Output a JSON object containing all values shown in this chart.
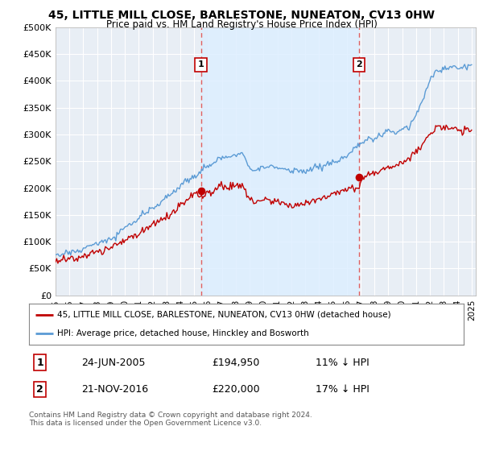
{
  "title": "45, LITTLE MILL CLOSE, BARLESTONE, NUNEATON, CV13 0HW",
  "subtitle": "Price paid vs. HM Land Registry's House Price Index (HPI)",
  "ylabel_ticks": [
    "£0",
    "£50K",
    "£100K",
    "£150K",
    "£200K",
    "£250K",
    "£300K",
    "£350K",
    "£400K",
    "£450K",
    "£500K"
  ],
  "ytick_values": [
    0,
    50000,
    100000,
    150000,
    200000,
    250000,
    300000,
    350000,
    400000,
    450000,
    500000
  ],
  "ylim": [
    0,
    500000
  ],
  "xlim_start": 1995.0,
  "xlim_end": 2025.3,
  "hpi_color": "#5b9bd5",
  "price_color": "#c00000",
  "vline_color": "#e06060",
  "shade_color": "#ddeeff",
  "marker1_x": 2005.48,
  "marker1_y": 194950,
  "marker2_x": 2016.9,
  "marker2_y": 220000,
  "legend_label_red": "45, LITTLE MILL CLOSE, BARLESTONE, NUNEATON, CV13 0HW (detached house)",
  "legend_label_blue": "HPI: Average price, detached house, Hinckley and Bosworth",
  "annotation1_num": "1",
  "annotation1_date": "24-JUN-2005",
  "annotation1_price": "£194,950",
  "annotation1_hpi": "11% ↓ HPI",
  "annotation2_num": "2",
  "annotation2_date": "21-NOV-2016",
  "annotation2_price": "£220,000",
  "annotation2_hpi": "17% ↓ HPI",
  "footer": "Contains HM Land Registry data © Crown copyright and database right 2024.\nThis data is licensed under the Open Government Licence v3.0.",
  "background_color": "#ffffff",
  "plot_bg_color": "#e8eef5"
}
